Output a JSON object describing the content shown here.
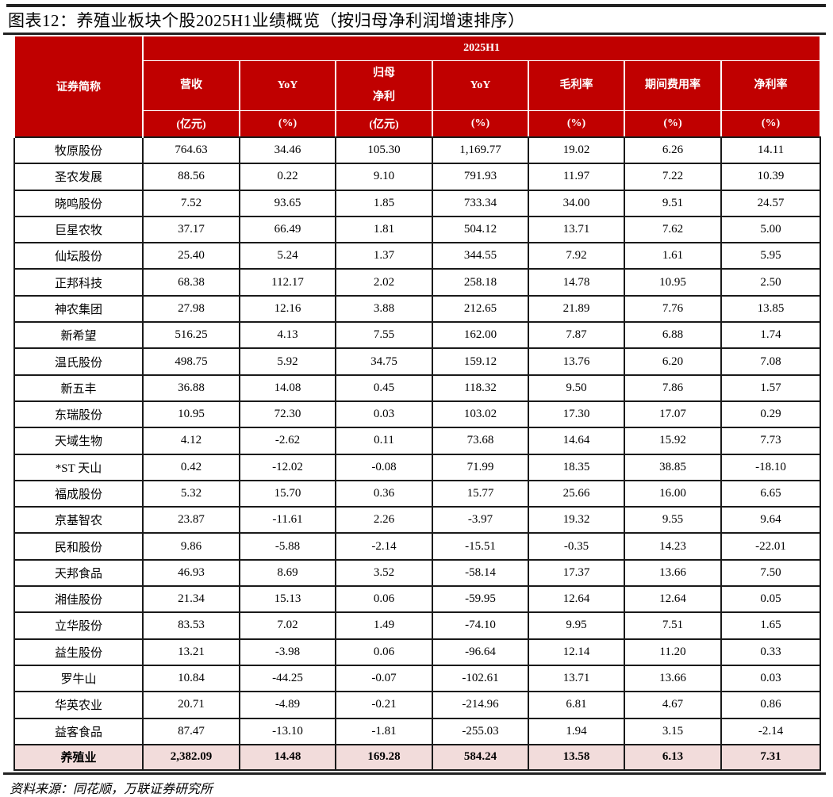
{
  "title": "图表12：养殖业板块个股2025H1业绩概览（按归母净利润增速排序）",
  "header": {
    "name_col": "证券简称",
    "period": "2025H1",
    "columns": [
      {
        "label": "营收",
        "unit": "(亿元)"
      },
      {
        "label": "YoY",
        "unit": "(%)"
      },
      {
        "label_line1": "归母",
        "label_line2": "净利",
        "unit": "(亿元)"
      },
      {
        "label": "YoY",
        "unit": "(%)"
      },
      {
        "label": "毛利率",
        "unit": "(%)"
      },
      {
        "label": "期间费用率",
        "unit": "(%)"
      },
      {
        "label": "净利率",
        "unit": "(%)"
      }
    ]
  },
  "rows": [
    [
      "牧原股份",
      "764.63",
      "34.46",
      "105.30",
      "1,169.77",
      "19.02",
      "6.26",
      "14.11"
    ],
    [
      "圣农发展",
      "88.56",
      "0.22",
      "9.10",
      "791.93",
      "11.97",
      "7.22",
      "10.39"
    ],
    [
      "晓鸣股份",
      "7.52",
      "93.65",
      "1.85",
      "733.34",
      "34.00",
      "9.51",
      "24.57"
    ],
    [
      "巨星农牧",
      "37.17",
      "66.49",
      "1.81",
      "504.12",
      "13.71",
      "7.62",
      "5.00"
    ],
    [
      "仙坛股份",
      "25.40",
      "5.24",
      "1.37",
      "344.55",
      "7.92",
      "1.61",
      "5.95"
    ],
    [
      "正邦科技",
      "68.38",
      "112.17",
      "2.02",
      "258.18",
      "14.78",
      "10.95",
      "2.50"
    ],
    [
      "神农集团",
      "27.98",
      "12.16",
      "3.88",
      "212.65",
      "21.89",
      "7.76",
      "13.85"
    ],
    [
      "新希望",
      "516.25",
      "4.13",
      "7.55",
      "162.00",
      "7.87",
      "6.88",
      "1.74"
    ],
    [
      "温氏股份",
      "498.75",
      "5.92",
      "34.75",
      "159.12",
      "13.76",
      "6.20",
      "7.08"
    ],
    [
      "新五丰",
      "36.88",
      "14.08",
      "0.45",
      "118.32",
      "9.50",
      "7.86",
      "1.57"
    ],
    [
      "东瑞股份",
      "10.95",
      "72.30",
      "0.03",
      "103.02",
      "17.30",
      "17.07",
      "0.29"
    ],
    [
      "天域生物",
      "4.12",
      "-2.62",
      "0.11",
      "73.68",
      "14.64",
      "15.92",
      "7.73"
    ],
    [
      "*ST 天山",
      "0.42",
      "-12.02",
      "-0.08",
      "71.99",
      "18.35",
      "38.85",
      "-18.10"
    ],
    [
      "福成股份",
      "5.32",
      "15.70",
      "0.36",
      "15.77",
      "25.66",
      "16.00",
      "6.65"
    ],
    [
      "京基智农",
      "23.87",
      "-11.61",
      "2.26",
      "-3.97",
      "19.32",
      "9.55",
      "9.64"
    ],
    [
      "民和股份",
      "9.86",
      "-5.88",
      "-2.14",
      "-15.51",
      "-0.35",
      "14.23",
      "-22.01"
    ],
    [
      "天邦食品",
      "46.93",
      "8.69",
      "3.52",
      "-58.14",
      "17.37",
      "13.66",
      "7.50"
    ],
    [
      "湘佳股份",
      "21.34",
      "15.13",
      "0.06",
      "-59.95",
      "12.64",
      "12.64",
      "0.05"
    ],
    [
      "立华股份",
      "83.53",
      "7.02",
      "1.49",
      "-74.10",
      "9.95",
      "7.51",
      "1.65"
    ],
    [
      "益生股份",
      "13.21",
      "-3.98",
      "0.06",
      "-96.64",
      "12.14",
      "11.20",
      "0.33"
    ],
    [
      "罗牛山",
      "10.84",
      "-44.25",
      "-0.07",
      "-102.61",
      "13.71",
      "13.66",
      "0.03"
    ],
    [
      "华英农业",
      "20.71",
      "-4.89",
      "-0.21",
      "-214.96",
      "6.81",
      "4.67",
      "0.86"
    ],
    [
      "益客食品",
      "87.47",
      "-13.10",
      "-1.81",
      "-255.03",
      "1.94",
      "3.15",
      "-2.14"
    ]
  ],
  "total": [
    "养殖业",
    "2,382.09",
    "14.48",
    "169.28",
    "584.24",
    "13.58",
    "6.13",
    "7.31"
  ],
  "source": "资料来源：同花顺，万联证券研究所",
  "colors": {
    "header_bg": "#C00000",
    "total_bg": "#F2DCDB"
  }
}
